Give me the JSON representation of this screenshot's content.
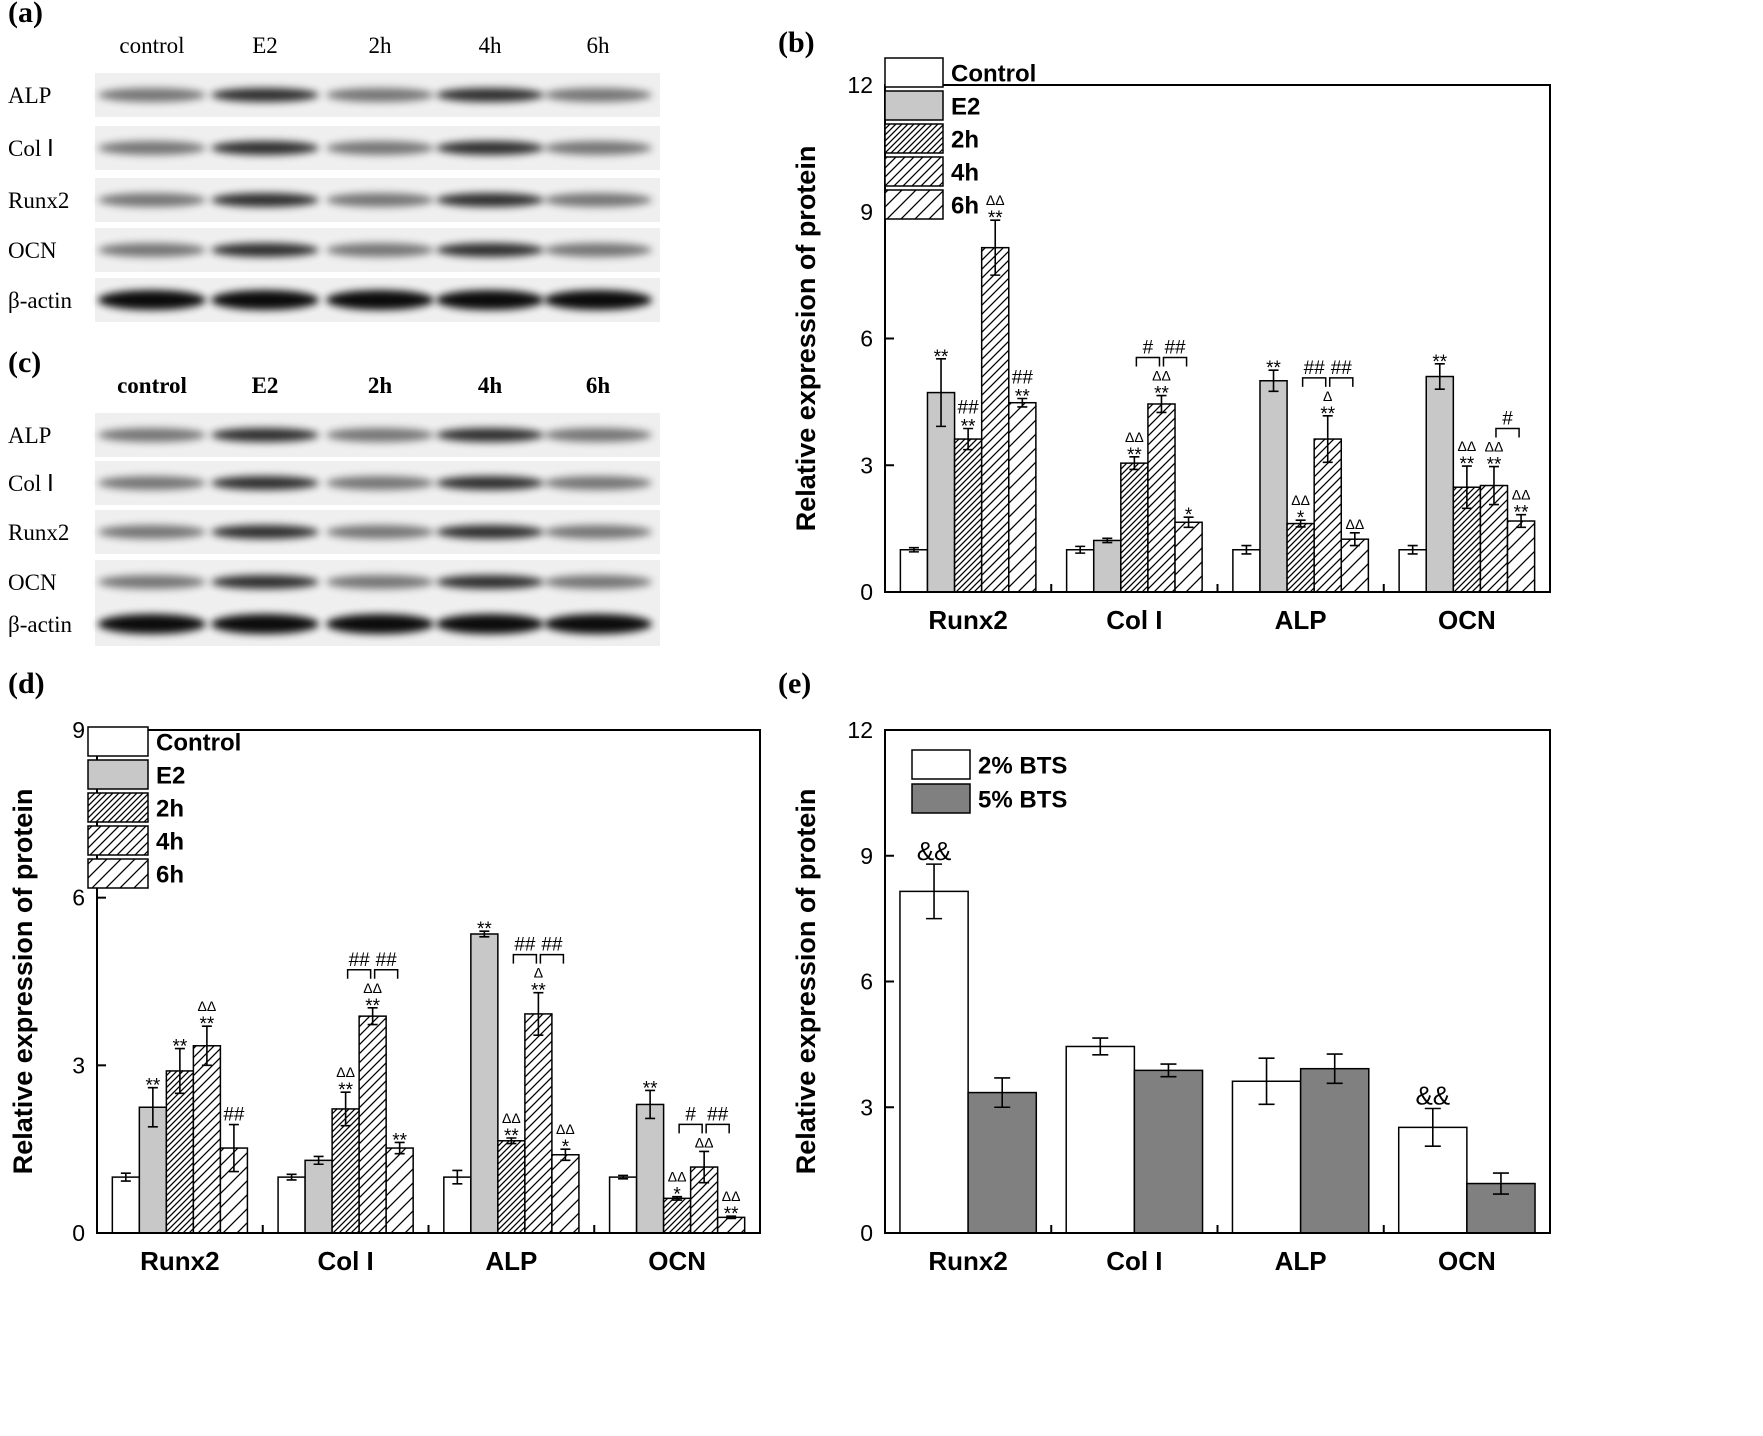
{
  "blots": [
    {
      "panel": "(a)",
      "columns": [
        "control",
        "E2",
        "2h",
        "4h",
        "6h"
      ],
      "rows": [
        "ALP",
        "Col Ⅰ",
        "Runx2",
        "OCN",
        "β-actin"
      ]
    },
    {
      "panel": "(c)",
      "columns": [
        "control",
        "E2",
        "2h",
        "4h",
        "6h"
      ],
      "rows": [
        "ALP",
        "Col Ⅰ",
        "Runx2",
        "OCN",
        "β-actin"
      ]
    }
  ],
  "chart_data": [
    {
      "panel": "(b)",
      "type": "bar",
      "ylabel": "Relative expression of protein",
      "categories": [
        "Runx2",
        "Col I",
        "ALP",
        "OCN"
      ],
      "ylim": [
        0,
        12
      ],
      "yticks": [
        0,
        3,
        6,
        9,
        12
      ],
      "legend": "upper left",
      "series": [
        {
          "name": "Control",
          "color": "#ffffff",
          "hatch": null,
          "values": [
            1.0,
            1.0,
            1.0,
            1.0
          ],
          "errors": [
            0.05,
            0.08,
            0.1,
            0.1
          ],
          "annotations": [
            null,
            null,
            null,
            null
          ]
        },
        {
          "name": "E2",
          "color": "#c8c8c8",
          "hatch": null,
          "values": [
            4.72,
            1.22,
            5.0,
            5.1
          ],
          "errors": [
            0.8,
            0.05,
            0.25,
            0.3
          ],
          "annotations": [
            [
              "**"
            ],
            null,
            [
              "**"
            ],
            [
              "**"
            ]
          ]
        },
        {
          "name": "2h",
          "color": "#ffffff",
          "hatch": "dense",
          "values": [
            3.62,
            3.05,
            1.62,
            2.48
          ],
          "errors": [
            0.25,
            0.15,
            0.08,
            0.5
          ],
          "annotations": [
            [
              "##",
              "**"
            ],
            [
              "ΔΔ",
              "**"
            ],
            [
              "ΔΔ",
              "*"
            ],
            [
              "ΔΔ",
              "**"
            ]
          ]
        },
        {
          "name": "4h",
          "color": "#ffffff",
          "hatch": "medium",
          "values": [
            8.15,
            4.45,
            3.62,
            2.52
          ],
          "errors": [
            0.65,
            0.2,
            0.55,
            0.45
          ],
          "annotations": [
            [
              "ΔΔ",
              "**"
            ],
            [
              "ΔΔ",
              "**"
            ],
            [
              "Δ",
              "**"
            ],
            [
              "ΔΔ",
              "**"
            ]
          ]
        },
        {
          "name": "6h",
          "color": "#ffffff",
          "hatch": "sparse",
          "values": [
            4.48,
            1.65,
            1.25,
            1.68
          ],
          "errors": [
            0.1,
            0.12,
            0.15,
            0.15
          ],
          "annotations": [
            [
              "##",
              "**"
            ],
            [
              "*"
            ],
            [
              "ΔΔ"
            ],
            [
              "ΔΔ",
              "**"
            ]
          ]
        }
      ],
      "brackets": [
        {
          "category": "Col I",
          "from": "2h",
          "to": "4h",
          "label": "#"
        },
        {
          "category": "Col I",
          "from": "4h",
          "to": "6h",
          "label": "##"
        },
        {
          "category": "ALP",
          "from": "2h",
          "to": "4h",
          "label": "##"
        },
        {
          "category": "ALP",
          "from": "4h",
          "to": "6h",
          "label": "##"
        },
        {
          "category": "OCN",
          "from": "4h",
          "to": "6h",
          "label": "#"
        }
      ]
    },
    {
      "panel": "(d)",
      "type": "bar",
      "ylabel": "Relative expression of protein",
      "categories": [
        "Runx2",
        "Col I",
        "ALP",
        "OCN"
      ],
      "ylim": [
        0,
        9
      ],
      "yticks": [
        0,
        3,
        6,
        9
      ],
      "legend": "upper left",
      "series": [
        {
          "name": "Control",
          "color": "#ffffff",
          "hatch": null,
          "values": [
            1.0,
            1.0,
            1.0,
            1.0
          ],
          "errors": [
            0.07,
            0.05,
            0.12,
            0.03
          ],
          "annotations": [
            null,
            null,
            null,
            null
          ]
        },
        {
          "name": "E2",
          "color": "#c8c8c8",
          "hatch": null,
          "values": [
            2.25,
            1.3,
            5.35,
            2.3
          ],
          "errors": [
            0.35,
            0.07,
            0.05,
            0.25
          ],
          "annotations": [
            [
              "**"
            ],
            null,
            [
              "**"
            ],
            [
              "**"
            ]
          ]
        },
        {
          "name": "2h",
          "color": "#ffffff",
          "hatch": "dense",
          "values": [
            2.9,
            2.22,
            1.65,
            0.62
          ],
          "errors": [
            0.4,
            0.3,
            0.05,
            0.03
          ],
          "annotations": [
            [
              "**"
            ],
            [
              "ΔΔ",
              "**"
            ],
            [
              "ΔΔ",
              "**"
            ],
            [
              "ΔΔ",
              "*"
            ]
          ]
        },
        {
          "name": "4h",
          "color": "#ffffff",
          "hatch": "medium",
          "values": [
            3.35,
            3.88,
            3.92,
            1.18
          ],
          "errors": [
            0.35,
            0.15,
            0.38,
            0.28
          ],
          "annotations": [
            [
              "ΔΔ",
              "**"
            ],
            [
              "ΔΔ",
              "**"
            ],
            [
              "Δ",
              "**"
            ],
            [
              "ΔΔ"
            ]
          ]
        },
        {
          "name": "6h",
          "color": "#ffffff",
          "hatch": "sparse",
          "values": [
            1.52,
            1.52,
            1.4,
            0.28
          ],
          "errors": [
            0.42,
            0.1,
            0.1,
            0.02
          ],
          "annotations": [
            [
              "##"
            ],
            [
              "**"
            ],
            [
              "ΔΔ",
              "*"
            ],
            [
              "ΔΔ",
              "**"
            ]
          ]
        }
      ],
      "brackets": [
        {
          "category": "Col I",
          "from": "2h",
          "to": "4h",
          "label": "##"
        },
        {
          "category": "Col I",
          "from": "4h",
          "to": "6h",
          "label": "##"
        },
        {
          "category": "ALP",
          "from": "2h",
          "to": "4h",
          "label": "##"
        },
        {
          "category": "ALP",
          "from": "4h",
          "to": "6h",
          "label": "##"
        },
        {
          "category": "OCN",
          "from": "2h",
          "to": "4h",
          "label": "#"
        },
        {
          "category": "OCN",
          "from": "4h",
          "to": "6h",
          "label": "##"
        }
      ]
    },
    {
      "panel": "(e)",
      "type": "bar",
      "ylabel": "Relative expression of protein",
      "categories": [
        "Runx2",
        "Col I",
        "ALP",
        "OCN"
      ],
      "ylim": [
        0,
        12
      ],
      "yticks": [
        0,
        3,
        6,
        9,
        12
      ],
      "legend": "upper left",
      "series": [
        {
          "name": "2% BTS",
          "color": "#ffffff",
          "hatch": null,
          "values": [
            8.15,
            4.45,
            3.62,
            2.52
          ],
          "errors": [
            0.65,
            0.2,
            0.55,
            0.45
          ],
          "annotations": [
            [
              "&&"
            ],
            null,
            null,
            [
              "&&"
            ]
          ]
        },
        {
          "name": "5% BTS",
          "color": "#808080",
          "hatch": null,
          "values": [
            3.35,
            3.88,
            3.92,
            1.18
          ],
          "errors": [
            0.35,
            0.15,
            0.35,
            0.25
          ],
          "annotations": [
            null,
            null,
            null,
            null
          ]
        }
      ],
      "brackets": []
    }
  ]
}
